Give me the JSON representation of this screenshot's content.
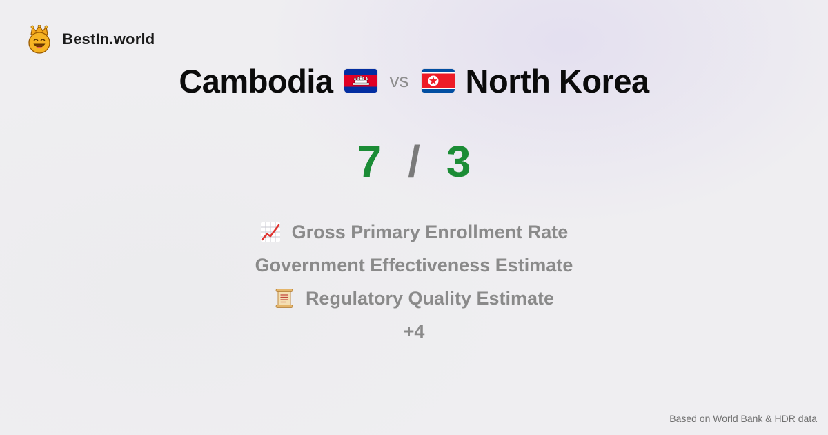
{
  "brand": {
    "name": "BestIn.world",
    "icon": "crown-smiley-icon"
  },
  "comparison": {
    "country_a": {
      "name": "Cambodia",
      "flag": "cambodia-flag-icon"
    },
    "vs_label": "vs",
    "country_b": {
      "name": "North Korea",
      "flag": "north-korea-flag-icon"
    }
  },
  "score": {
    "a": "7",
    "separator": "/",
    "b": "3",
    "color": "#1b8c35"
  },
  "metrics": {
    "items": [
      {
        "label": "Gross Primary Enrollment Rate",
        "icon": "chart-increasing-icon"
      },
      {
        "label": "Government Effectiveness Estimate",
        "icon": ""
      },
      {
        "label": "Regulatory Quality Estimate",
        "icon": "scroll-icon"
      }
    ],
    "more": "+4"
  },
  "footer": {
    "source": "Based on World Bank & HDR data"
  },
  "colors": {
    "score_green": "#1b8c35",
    "muted_text": "#8a8a8a",
    "cambodia_blue": "#032ea1",
    "cambodia_red": "#e00025",
    "nk_blue": "#024fa2",
    "nk_red": "#ed1c27"
  }
}
